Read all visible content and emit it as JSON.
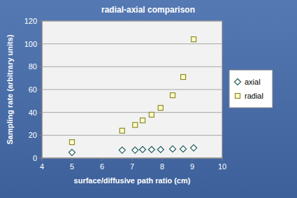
{
  "chart_data": {
    "type": "scatter",
    "title": "radial-axial comparison",
    "x_label": "surface/diffusive path ratio (cm)",
    "y_label": "Sampling rate (arbitrary units)",
    "x": [
      5,
      6.67,
      7.1,
      7.35,
      7.65,
      7.95,
      8.35,
      8.7,
      9.05
    ],
    "series": [
      {
        "name": "axial",
        "color": "#1f5c5c",
        "marker": "diamond",
        "values": [
          5,
          7,
          7,
          7.5,
          7.5,
          7.5,
          8,
          8,
          9
        ]
      },
      {
        "name": "radial",
        "color": "#8a8a2e",
        "marker": "square",
        "values": [
          14,
          24,
          29,
          33,
          38,
          44,
          55,
          71,
          104
        ]
      }
    ],
    "xlim": [
      4,
      10
    ],
    "xticks": [
      4,
      5,
      6,
      7,
      8,
      9,
      10
    ],
    "ylim": [
      0,
      120
    ],
    "yticks": [
      0,
      20,
      40,
      60,
      80,
      100,
      120
    ],
    "grid": true,
    "legend": "right"
  }
}
